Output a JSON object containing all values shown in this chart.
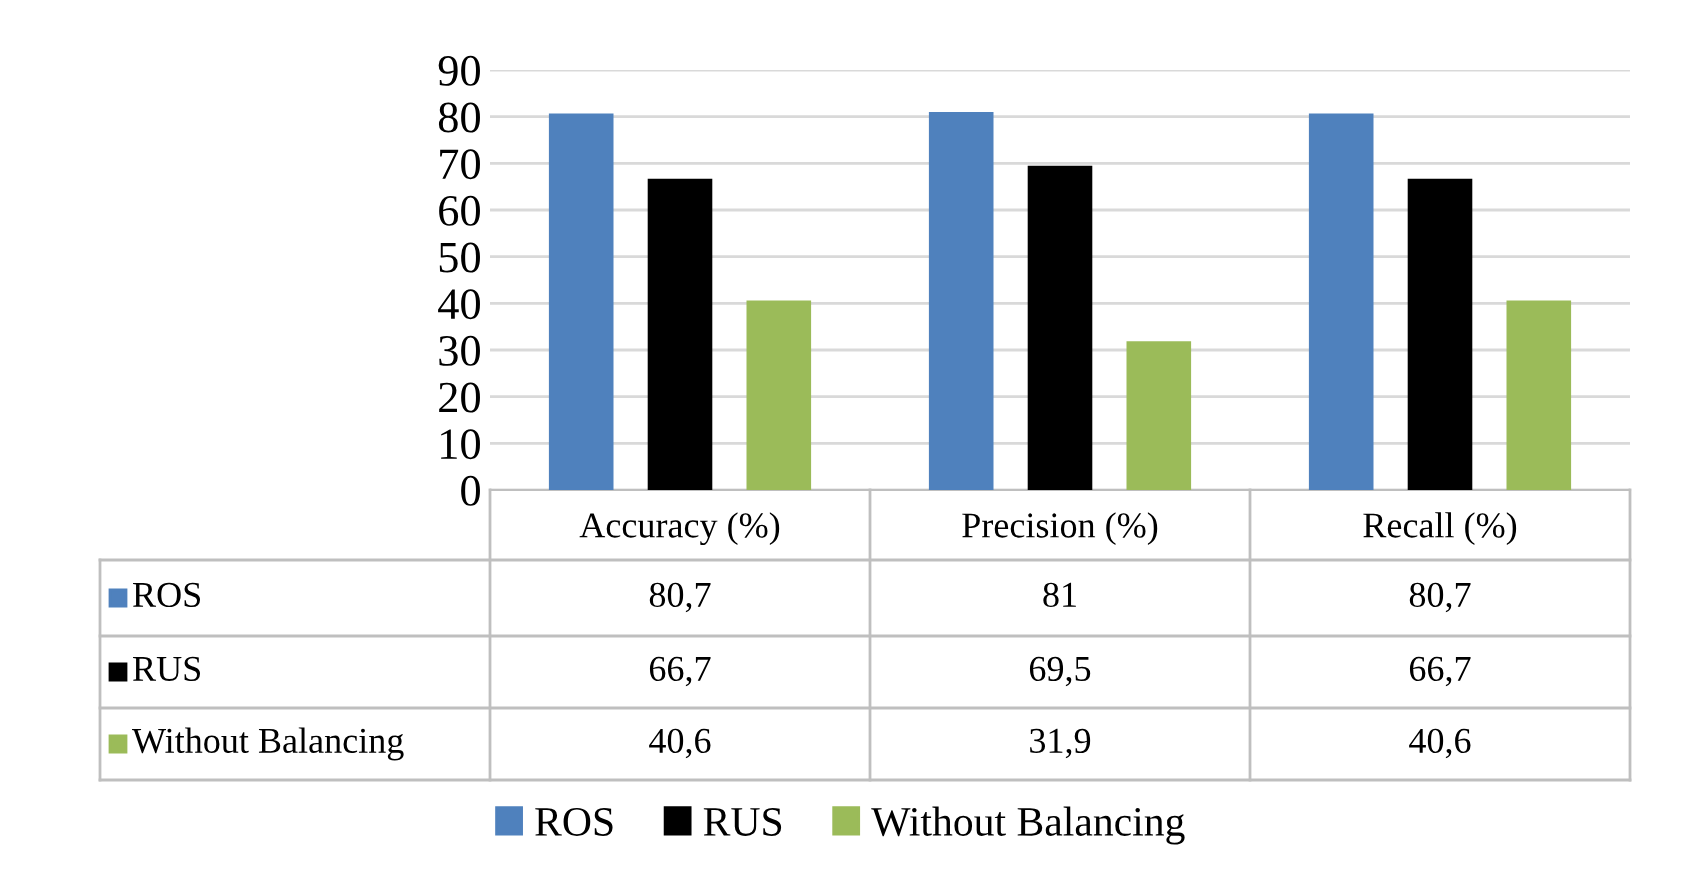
{
  "chart_data": {
    "type": "bar",
    "categories": [
      "Accuracy (%)",
      "Precision (%)",
      "Recall (%)"
    ],
    "series": [
      {
        "name": "ROS",
        "color": "#4f81bd",
        "values": [
          80.7,
          81,
          80.7
        ],
        "value_labels": [
          "80,7",
          "81",
          "80,7"
        ]
      },
      {
        "name": "RUS",
        "color": "#000000",
        "values": [
          66.7,
          69.5,
          66.7
        ],
        "value_labels": [
          "66,7",
          "69,5",
          "66,7"
        ]
      },
      {
        "name": "Without Balancing",
        "color": "#9bbb59",
        "values": [
          40.6,
          31.9,
          40.6
        ],
        "value_labels": [
          "40,6",
          "31,9",
          "40,6"
        ]
      }
    ],
    "ylim": [
      0,
      90
    ],
    "yticks": [
      0,
      10,
      20,
      30,
      40,
      50,
      60,
      70,
      80,
      90
    ],
    "grid": "y",
    "legend": "bottom"
  }
}
